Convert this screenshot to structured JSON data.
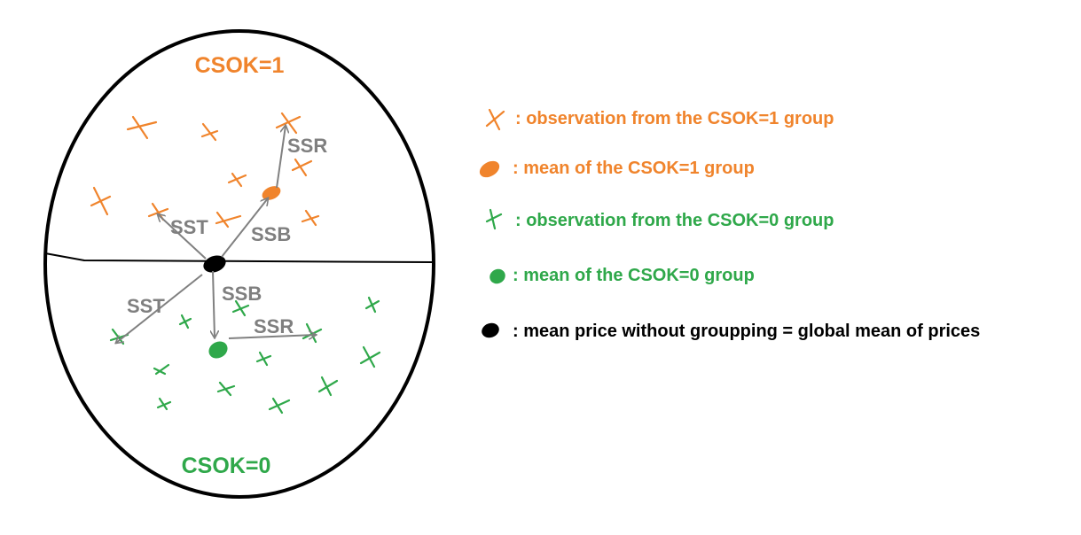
{
  "colors": {
    "orange": "#f0842c",
    "green": "#2fa84a",
    "gray": "#808080",
    "black": "#000000"
  },
  "diagram": {
    "group1_label": "CSOK=1",
    "group0_label": "CSOK=0",
    "arrows": {
      "sst_upper": "SST",
      "ssb_upper": "SSB",
      "ssr_upper": "SSR",
      "sst_lower": "SST",
      "ssb_lower": "SSB",
      "ssr_lower": "SSR"
    }
  },
  "legend": {
    "items": [
      {
        "icon": "orange-x-icon",
        "text": ": observation from the CSOK=1 group"
      },
      {
        "icon": "orange-dot-icon",
        "text": ": mean of the CSOK=1 group"
      },
      {
        "icon": "green-x-icon",
        "text": ": observation from the CSOK=0 group"
      },
      {
        "icon": "green-dot-icon",
        "text": ": mean of the CSOK=0 group"
      },
      {
        "icon": "black-dot-icon",
        "text": ": mean price without groupping = global mean of prices"
      }
    ]
  }
}
